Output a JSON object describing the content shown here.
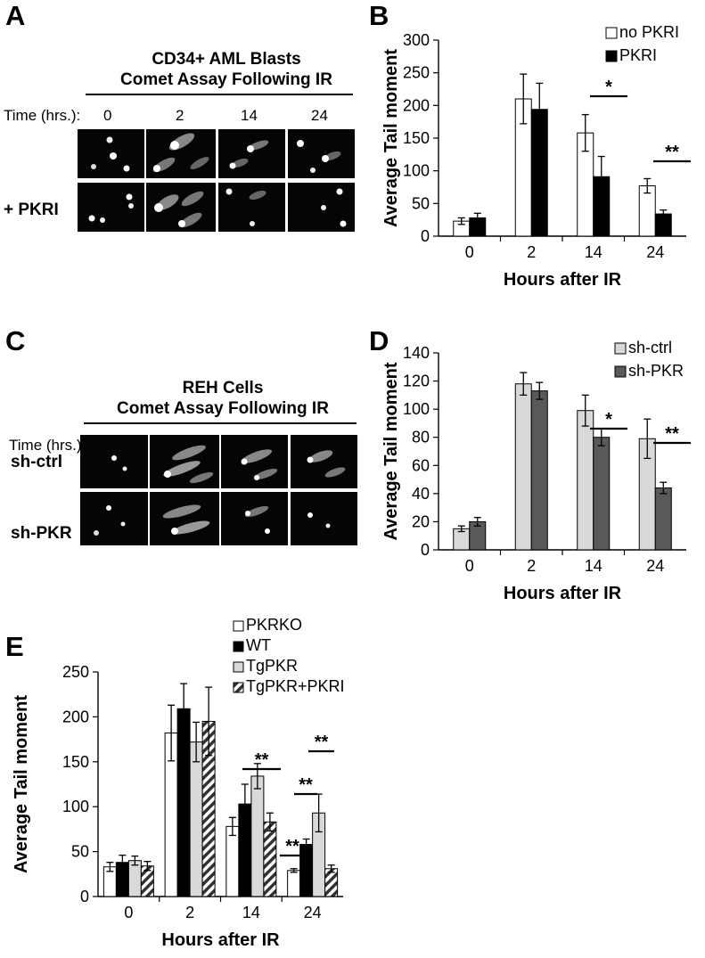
{
  "panelA": {
    "letter": "A",
    "title_line1": "CD34+ AML Blasts",
    "title_line2": "Comet Assay Following IR",
    "time_prefix": "Time (hrs.):",
    "times": [
      "0",
      "2",
      "14",
      "24"
    ],
    "row2_label": "+ PKRI"
  },
  "panelC": {
    "letter": "C",
    "title_line1": "REH Cells",
    "title_line2": "Comet Assay Following IR",
    "time_prefix": "Time (hrs.):",
    "times": [
      "0",
      "2",
      "14",
      "24"
    ],
    "row1_label": "sh-ctrl",
    "row2_label": "sh-PKR"
  },
  "panelB": {
    "letter": "B"
  },
  "panelD": {
    "letter": "D"
  },
  "panelE": {
    "letter": "E"
  },
  "chart_data": [
    {
      "id": "B",
      "type": "bar",
      "categories": [
        "0",
        "2",
        "14",
        "24"
      ],
      "series": [
        {
          "name": "no PKRI",
          "values": [
            23,
            210,
            158,
            77
          ],
          "errors": [
            5,
            38,
            28,
            11
          ],
          "color": "#ffffff",
          "pattern": "none"
        },
        {
          "name": "PKRI",
          "values": [
            28,
            194,
            91,
            34
          ],
          "errors": [
            7,
            40,
            31,
            6
          ],
          "color": "#000000",
          "pattern": "none"
        }
      ],
      "xlabel": "Hours after IR",
      "ylabel": "Average Tail moment",
      "ylim": [
        0,
        300
      ],
      "yticks": [
        0,
        50,
        100,
        150,
        200,
        250,
        300
      ],
      "grid": false,
      "legend": "top-right",
      "significance": [
        {
          "group": 2,
          "label": "*"
        },
        {
          "group": 3,
          "label": "**"
        }
      ]
    },
    {
      "id": "D",
      "type": "bar",
      "categories": [
        "0",
        "2",
        "14",
        "24"
      ],
      "series": [
        {
          "name": "sh-ctrl",
          "values": [
            15,
            118,
            99,
            79
          ],
          "errors": [
            2,
            8,
            11,
            14
          ],
          "color": "#d9d9d9",
          "pattern": "none"
        },
        {
          "name": "sh-PKR",
          "values": [
            20,
            113,
            80,
            44
          ],
          "errors": [
            3,
            6,
            6,
            4
          ],
          "color": "#595959",
          "pattern": "none"
        }
      ],
      "xlabel": "Hours after IR",
      "ylabel": "Average Tail moment",
      "ylim": [
        0,
        140
      ],
      "yticks": [
        0,
        20,
        40,
        60,
        80,
        100,
        120,
        140
      ],
      "grid": false,
      "legend": "top-right",
      "significance": [
        {
          "group": 2,
          "label": "*"
        },
        {
          "group": 3,
          "label": "**"
        }
      ]
    },
    {
      "id": "E",
      "type": "bar",
      "categories": [
        "0",
        "2",
        "14",
        "24"
      ],
      "series": [
        {
          "name": "PKRKO",
          "values": [
            33,
            182,
            78,
            29
          ],
          "errors": [
            5,
            31,
            10,
            2
          ],
          "color": "#ffffff",
          "pattern": "none"
        },
        {
          "name": "WT",
          "values": [
            38,
            209,
            103,
            58
          ],
          "errors": [
            8,
            28,
            22,
            6
          ],
          "color": "#000000",
          "pattern": "none"
        },
        {
          "name": "TgPKR",
          "values": [
            40,
            172,
            134,
            93
          ],
          "errors": [
            5,
            22,
            14,
            21
          ],
          "color": "#d9d9d9",
          "pattern": "none"
        },
        {
          "name": "TgPKR+PKRI",
          "values": [
            34,
            195,
            83,
            31
          ],
          "errors": [
            5,
            38,
            10,
            4
          ],
          "color": "#ffffff",
          "pattern": "hatch"
        }
      ],
      "xlabel": "Hours after IR",
      "ylabel": "Average Tail moment",
      "ylim": [
        0,
        250
      ],
      "yticks": [
        0,
        50,
        100,
        150,
        200,
        250
      ],
      "grid": false,
      "legend": "top-center",
      "significance": [
        {
          "group": 2,
          "label": "**"
        },
        {
          "group": 3,
          "label": "**"
        },
        {
          "group": 3,
          "label": "**"
        },
        {
          "group": 3,
          "label": "**"
        }
      ]
    }
  ]
}
